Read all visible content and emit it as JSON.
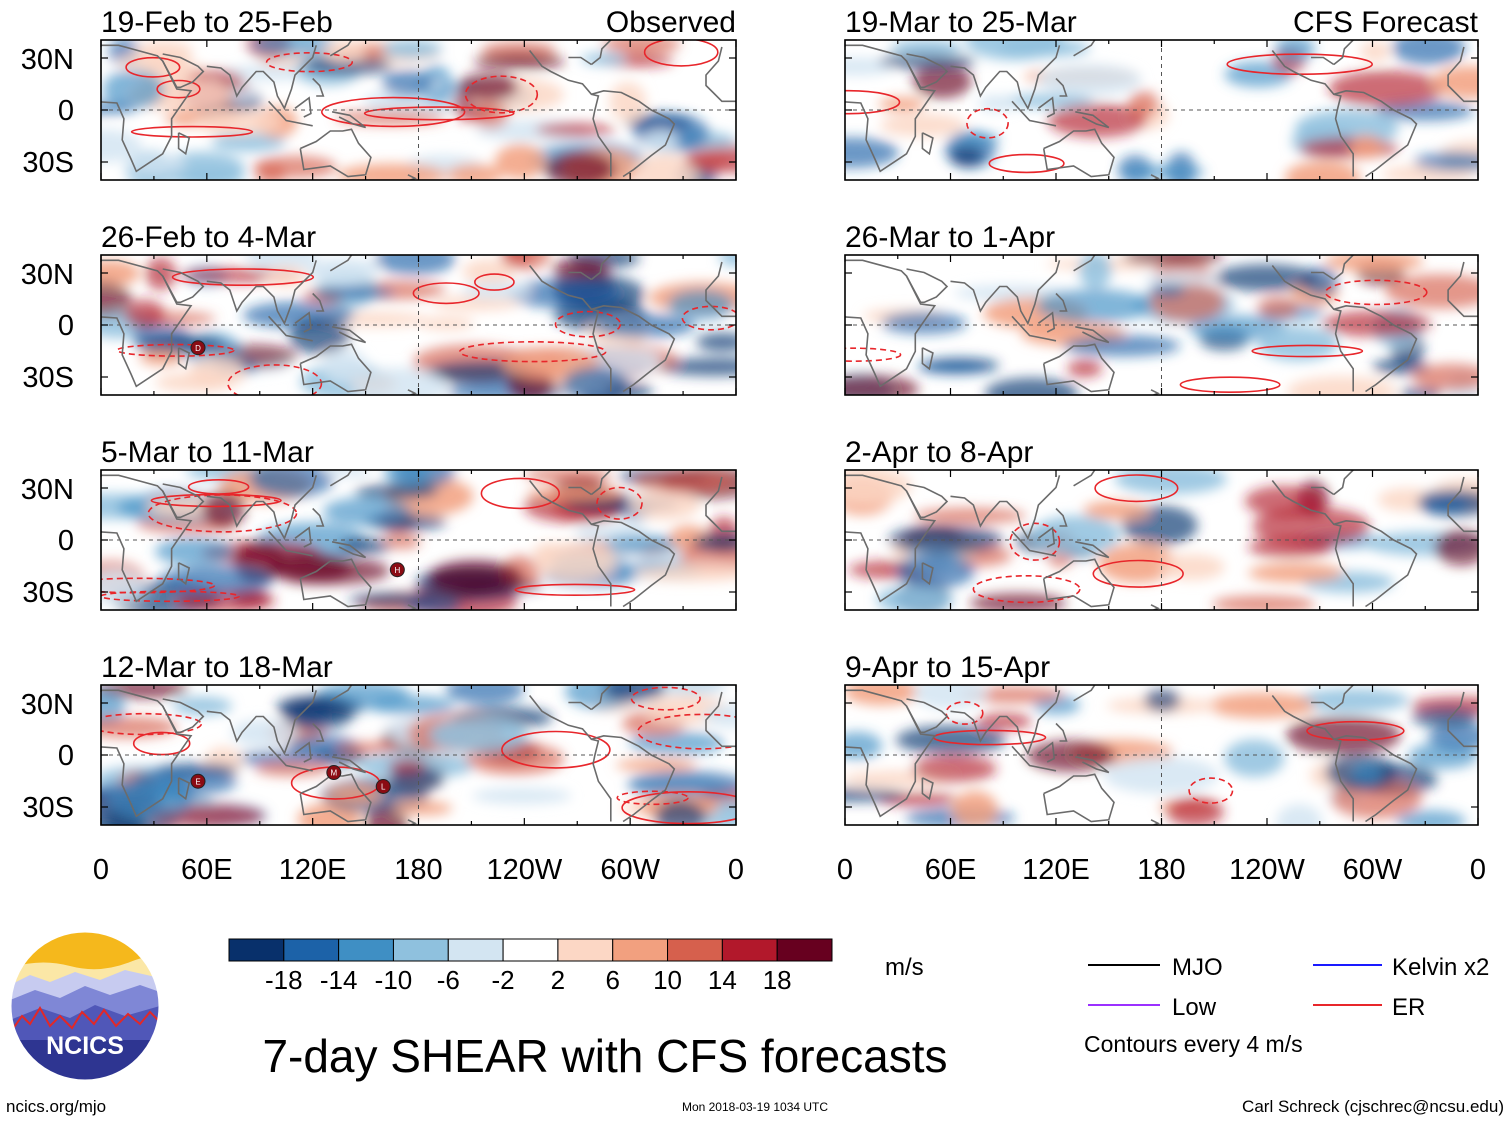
{
  "chart_data": {
    "type": "heatmap",
    "title": "7-day SHEAR with CFS forecasts",
    "units": "m/s",
    "x_ticks": [
      "0",
      "60E",
      "120E",
      "180",
      "120W",
      "60W",
      "0"
    ],
    "y_ticks": [
      "30N",
      "0",
      "30S"
    ],
    "colorbar": {
      "labels": [
        "-18",
        "-14",
        "-10",
        "-6",
        "-2",
        "2",
        "6",
        "10",
        "14",
        "18"
      ],
      "colors": [
        "#08306b",
        "#1c62a8",
        "#3f8fc4",
        "#8fc1de",
        "#d3e5f2",
        "#ffffff",
        "#fcd7c5",
        "#f2a07f",
        "#d6604d",
        "#b2182b",
        "#67001f"
      ]
    },
    "panels": [
      {
        "column": "observed",
        "period": "19-Feb to 25-Feb",
        "tag": "Observed",
        "storms": []
      },
      {
        "column": "observed",
        "period": "26-Feb to 4-Mar",
        "tag": "",
        "storms": [
          {
            "label": "D",
            "lon": 55,
            "lat": -13
          }
        ]
      },
      {
        "column": "observed",
        "period": "5-Mar to 11-Mar",
        "tag": "",
        "storms": [
          {
            "label": "H",
            "lon": 168,
            "lat": -17
          }
        ]
      },
      {
        "column": "observed",
        "period": "12-Mar to 18-Mar",
        "tag": "",
        "storms": [
          {
            "label": "E",
            "lon": 55,
            "lat": -15
          },
          {
            "label": "M",
            "lon": 132,
            "lat": -10
          },
          {
            "label": "L",
            "lon": 160,
            "lat": -18
          }
        ]
      },
      {
        "column": "forecast",
        "period": "19-Mar to 25-Mar",
        "tag": "CFS Forecast",
        "storms": []
      },
      {
        "column": "forecast",
        "period": "26-Mar to 1-Apr",
        "tag": "",
        "storms": []
      },
      {
        "column": "forecast",
        "period": "2-Apr to 8-Apr",
        "tag": "",
        "storms": []
      },
      {
        "column": "forecast",
        "period": "9-Apr to 15-Apr",
        "tag": "",
        "storms": []
      }
    ]
  },
  "legend": {
    "items": [
      {
        "label": "MJO",
        "color": "#000000"
      },
      {
        "label": "Kelvin x2",
        "color": "#1a1aff"
      },
      {
        "label": "Low",
        "color": "#9b30ff"
      },
      {
        "label": "ER",
        "color": "#e8262b"
      }
    ],
    "note": "Contours every 4 m/s"
  },
  "logo": {
    "text": "NCICS"
  },
  "footer": {
    "url": "ncics.org/mjo",
    "timestamp": "Mon 2018-03-19 1034 UTC",
    "credit": "Carl Schreck (cjschrec@ncsu.edu)"
  }
}
